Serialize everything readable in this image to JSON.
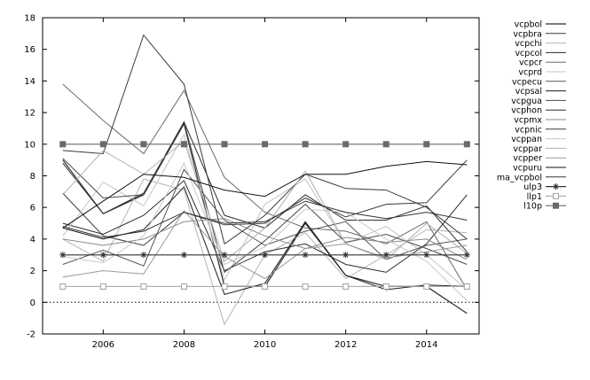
{
  "chart_data": {
    "type": "line",
    "title": "",
    "xlabel": "",
    "ylabel": "",
    "xlim": [
      2004.5,
      2015.3
    ],
    "ylim": [
      -2,
      18
    ],
    "x_ticks": [
      2006,
      2008,
      2010,
      2012,
      2014
    ],
    "x_tick_labels": [
      "2006",
      "2008",
      "2010",
      "2012",
      "2014"
    ],
    "y_ticks": [
      -2,
      0,
      2,
      4,
      6,
      8,
      10,
      12,
      14,
      16,
      18
    ],
    "y_tick_labels": [
      "-2",
      "0",
      "2",
      "4",
      "6",
      "8",
      "10",
      "12",
      "14",
      "16",
      "18"
    ],
    "grid": false,
    "legend_position": "right",
    "zero_line": "dotted",
    "x": [
      2005,
      2006,
      2007,
      2008,
      2009,
      2010,
      2011,
      2012,
      2013,
      2014,
      2015
    ],
    "series": [
      {
        "name": "vcpbol",
        "color": "#2a2a2a",
        "width": 1.2,
        "values": [
          9.0,
          5.6,
          6.8,
          11.3,
          1.0,
          1.0,
          5.0,
          1.7,
          1.0,
          1.0,
          -0.7
        ]
      },
      {
        "name": "vcpbra",
        "color": "#3a3a3a",
        "width": 1.0,
        "values": [
          6.9,
          4.2,
          3.6,
          5.7,
          4.9,
          5.0,
          6.6,
          5.4,
          6.2,
          6.3,
          9.0
        ]
      },
      {
        "name": "vcpchi",
        "color": "#b5b5b5",
        "width": 1.0,
        "values": [
          4.0,
          2.6,
          7.8,
          7.1,
          -1.4,
          3.0,
          4.4,
          1.5,
          3.0,
          4.6,
          4.4
        ]
      },
      {
        "name": "vcpcol",
        "color": "#2a2a2a",
        "width": 1.0,
        "values": [
          5.0,
          4.3,
          5.5,
          7.7,
          2.0,
          3.2,
          3.7,
          2.4,
          1.9,
          3.7,
          6.8
        ]
      },
      {
        "name": "vcpcr",
        "color": "#6a6a6a",
        "width": 1.0,
        "values": [
          13.8,
          11.5,
          9.4,
          13.4,
          7.9,
          5.7,
          4.7,
          4.5,
          3.7,
          5.1,
          0.8
        ]
      },
      {
        "name": "vcprd",
        "color": "#c4c4c4",
        "width": 1.0,
        "values": [
          4.2,
          7.6,
          6.1,
          10.6,
          1.4,
          6.2,
          7.8,
          3.7,
          4.8,
          3.0,
          0.8
        ]
      },
      {
        "name": "vcpecu",
        "color": "#555555",
        "width": 1.0,
        "values": [
          2.4,
          3.3,
          2.3,
          8.4,
          5.2,
          3.6,
          4.5,
          5.1,
          2.7,
          3.6,
          4.0
        ]
      },
      {
        "name": "vcpsal",
        "color": "#1a1a1a",
        "width": 1.0,
        "values": [
          4.7,
          4.0,
          4.6,
          7.3,
          0.5,
          1.2,
          5.1,
          1.7,
          0.8,
          1.1,
          1.0
        ]
      },
      {
        "name": "vcpgua",
        "color": "#4a4a4a",
        "width": 1.0,
        "values": [
          9.1,
          6.6,
          6.8,
          11.4,
          1.9,
          3.9,
          6.2,
          3.8,
          4.3,
          3.4,
          2.4
        ]
      },
      {
        "name": "vcphon",
        "color": "#2e2e2e",
        "width": 1.0,
        "values": [
          8.8,
          5.6,
          6.9,
          11.4,
          5.5,
          4.7,
          6.8,
          5.2,
          5.2,
          6.1,
          3.2
        ]
      },
      {
        "name": "vcpmx",
        "color": "#8a8a8a",
        "width": 1.0,
        "values": [
          4.0,
          3.6,
          4.0,
          5.1,
          5.3,
          4.2,
          3.4,
          4.1,
          3.8,
          4.0,
          2.7
        ]
      },
      {
        "name": "vcpnic",
        "color": "#3a3a3a",
        "width": 1.0,
        "values": [
          9.6,
          9.4,
          16.9,
          13.8,
          3.7,
          5.5,
          8.1,
          7.2,
          7.1,
          6.0,
          4.0
        ]
      },
      {
        "name": "vcppan",
        "color": "#c8c8c8",
        "width": 1.0,
        "values": [
          2.9,
          2.5,
          4.2,
          8.8,
          2.4,
          3.5,
          5.9,
          5.7,
          4.0,
          2.6,
          0.1
        ]
      },
      {
        "name": "vcppar",
        "color": "#b0b0b0",
        "width": 1.0,
        "values": [
          6.8,
          9.6,
          8.1,
          10.2,
          2.6,
          4.7,
          8.3,
          3.7,
          2.7,
          5.0,
          3.1
        ]
      },
      {
        "name": "vcpper",
        "color": "#9a9a9a",
        "width": 1.0,
        "values": [
          1.6,
          2.0,
          1.8,
          5.8,
          2.9,
          1.5,
          3.4,
          3.7,
          2.8,
          3.2,
          3.6
        ]
      },
      {
        "name": "vcpuru",
        "color": "#111111",
        "width": 1.0,
        "values": [
          4.7,
          6.4,
          8.1,
          7.9,
          7.1,
          6.7,
          8.1,
          8.1,
          8.6,
          8.9,
          8.7
        ]
      },
      {
        "name": "ma_vcpbol",
        "color": "#333333",
        "width": 1.0,
        "values": [
          4.8,
          4.1,
          4.5,
          5.7,
          5.0,
          5.1,
          6.4,
          5.7,
          5.3,
          5.7,
          5.2
        ]
      },
      {
        "name": "ulp3",
        "color": "#333333",
        "width": 1.2,
        "marker": "asterisk",
        "values": [
          3,
          3,
          3,
          3,
          3,
          3,
          3,
          3,
          3,
          3,
          3
        ]
      },
      {
        "name": "llp1",
        "color": "#a0a0a0",
        "width": 1.0,
        "marker": "open-square",
        "values": [
          1,
          1,
          1,
          1,
          1,
          1,
          1,
          1,
          1,
          1,
          1
        ]
      },
      {
        "name": "l10p",
        "color": "#6a6a6a",
        "width": 1.2,
        "marker": "filled-square",
        "values": [
          10,
          10,
          10,
          10,
          10,
          10,
          10,
          10,
          10,
          10,
          10
        ]
      }
    ]
  }
}
